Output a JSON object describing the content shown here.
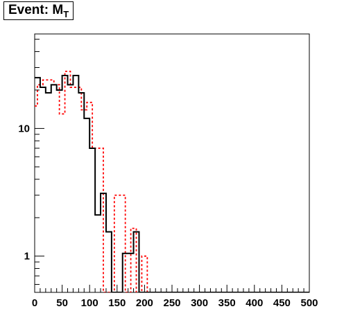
{
  "chart_data": {
    "type": "histogram",
    "title": "Event: M",
    "title_subscript": "T",
    "xlim": [
      0,
      500
    ],
    "ylim": [
      0.52,
      55
    ],
    "y_scale": "log",
    "bin_width": 10,
    "x_ticks": [
      0,
      50,
      100,
      150,
      200,
      250,
      300,
      350,
      400,
      450,
      500
    ],
    "x_tick_labels": [
      "0",
      "50",
      "100",
      "150",
      "200",
      "250",
      "300",
      "350",
      "400",
      "450",
      "500"
    ],
    "y_ticks": [
      1,
      10
    ],
    "y_tick_labels": [
      "1",
      "10"
    ],
    "grid": false,
    "legend": "none",
    "series": [
      {
        "color": "#000000",
        "line_style": "solid",
        "bin_edges": [
          0,
          5,
          10,
          15,
          20,
          25,
          30,
          35,
          40,
          45,
          50,
          55,
          60,
          65,
          70,
          75,
          80,
          85,
          90,
          95,
          100,
          105,
          110,
          115,
          120,
          125,
          130,
          135,
          140,
          145,
          150,
          155,
          160,
          165,
          170,
          175,
          180,
          185,
          190,
          195,
          200,
          205,
          210,
          215,
          220,
          225,
          230,
          235,
          240,
          245,
          250,
          255,
          260,
          265,
          270,
          275,
          280,
          285,
          290,
          295,
          300,
          305,
          310,
          315,
          320,
          325,
          330,
          335,
          340,
          345,
          350,
          355,
          360,
          365,
          370,
          375,
          380,
          385,
          390,
          395,
          400,
          405,
          410,
          415,
          420,
          425,
          430,
          435,
          440,
          445,
          450,
          455,
          460,
          465,
          470,
          475,
          480,
          485,
          490,
          495,
          500
        ],
        "counts": [
          25,
          25,
          21,
          21,
          19,
          19,
          22,
          22,
          20,
          20,
          26,
          26,
          22,
          22,
          26,
          26,
          19,
          19,
          12,
          12,
          7,
          7,
          2.1,
          2.1,
          3.1,
          3.1,
          1.55,
          1.55,
          0,
          0,
          0.52,
          0,
          1.05,
          1.05,
          1.05,
          1.05,
          1.55,
          1.55,
          0,
          0,
          0,
          0,
          0,
          0,
          0,
          0,
          0,
          0,
          0,
          0,
          0,
          0,
          0.52,
          0.52,
          0,
          0,
          0.52,
          0.52,
          0,
          0,
          0,
          0,
          0,
          0,
          0,
          0,
          0,
          0,
          0,
          0,
          0,
          0,
          0,
          0,
          0,
          0,
          0,
          0,
          0,
          0,
          0,
          0,
          0,
          0,
          0,
          0,
          0,
          0,
          0,
          0,
          0,
          0,
          0,
          0,
          0,
          0,
          0,
          0,
          0,
          0
        ]
      },
      {
        "color": "#ff0000",
        "line_style": "dashed",
        "bin_edges": [
          0,
          5,
          10,
          15,
          20,
          25,
          30,
          35,
          40,
          45,
          50,
          55,
          60,
          65,
          70,
          75,
          80,
          85,
          90,
          95,
          100,
          105,
          110,
          115,
          120,
          125,
          130,
          135,
          140,
          145,
          150,
          155,
          160,
          165,
          170,
          175,
          180,
          185,
          190,
          195,
          200,
          205,
          210,
          215,
          220,
          225,
          230,
          235,
          240,
          245,
          250,
          255,
          260,
          265,
          270,
          275,
          280,
          285,
          290,
          295,
          300,
          305,
          310,
          315,
          320,
          325,
          330,
          335,
          340,
          345,
          350,
          355,
          360,
          365,
          370,
          375,
          380,
          385,
          390,
          395,
          400,
          405,
          410,
          415,
          420,
          425,
          430,
          435,
          440,
          445,
          450,
          455,
          460,
          465,
          470,
          475,
          480,
          485,
          490,
          495,
          500
        ],
        "counts": [
          15,
          22,
          22,
          24,
          24,
          24,
          24,
          22,
          22,
          13,
          13,
          28,
          28,
          21,
          21,
          21,
          21,
          14,
          14,
          16,
          16,
          7,
          7,
          7,
          7,
          0,
          0,
          0,
          0,
          3,
          3,
          3,
          3,
          0,
          0,
          1.65,
          1.65,
          0,
          0,
          1,
          1,
          0,
          0,
          0,
          0,
          0,
          0,
          0,
          0,
          0,
          0,
          0,
          0,
          0,
          0,
          0,
          0,
          0,
          0,
          0,
          0,
          0,
          0,
          0,
          0,
          0,
          0,
          0,
          0,
          0,
          0,
          0,
          0,
          0,
          0,
          0,
          0,
          0,
          0,
          0,
          0,
          0,
          0,
          0,
          0,
          0,
          0,
          0,
          0,
          0,
          0,
          0,
          0,
          0,
          0,
          0,
          0,
          0,
          0,
          0
        ]
      }
    ]
  }
}
